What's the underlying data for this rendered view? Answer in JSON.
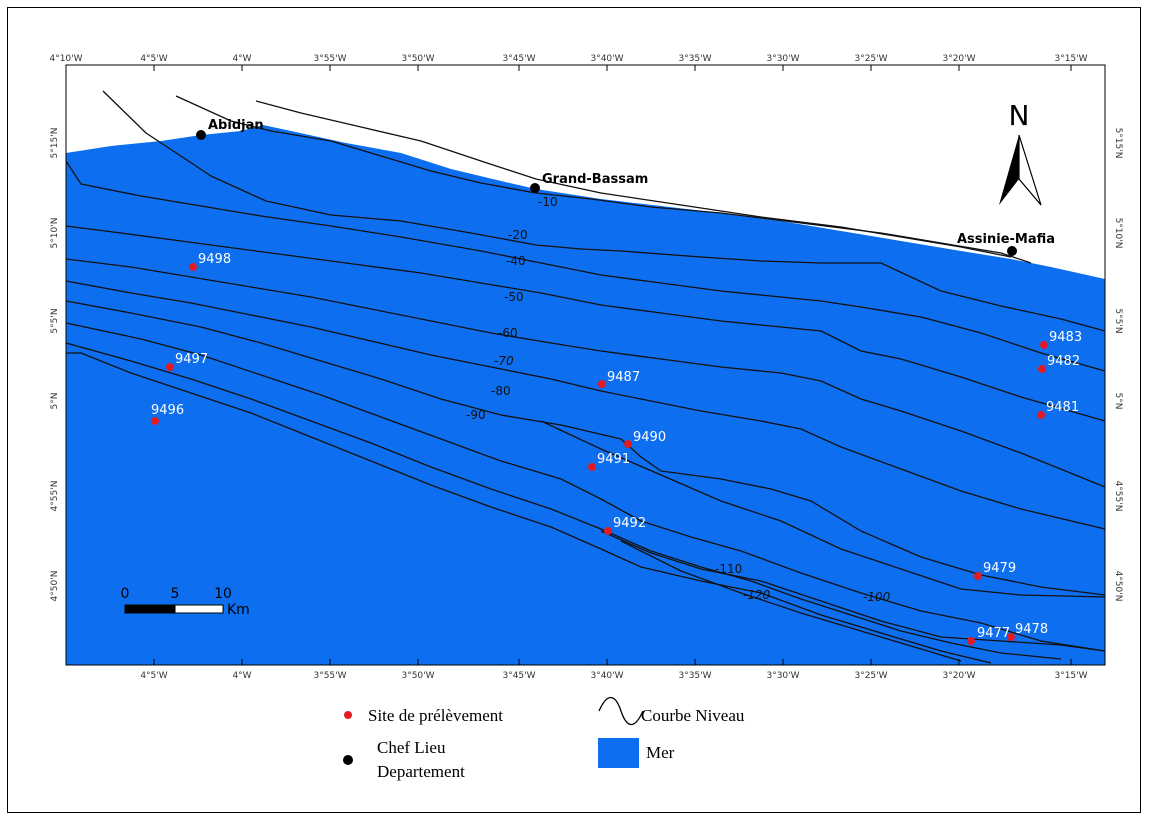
{
  "top_ticks": [
    "4°10'W",
    "4°5'W",
    "4°W",
    "3°55'W",
    "3°50'W",
    "3°45'W",
    "3°40'W",
    "3°35'W",
    "3°30'W",
    "3°25'W",
    "3°20'W",
    "3°15'W"
  ],
  "bottom_ticks": [
    "4°5'W",
    "4°W",
    "3°55'W",
    "3°50'W",
    "3°45'W",
    "3°40'W",
    "3°35'W",
    "3°30'W",
    "3°25'W",
    "3°20'W",
    "3°15'W"
  ],
  "lat_ticks": [
    "5°15'N",
    "5°10'N",
    "5°5'N",
    "5°N",
    "4°55'N",
    "4°50'N"
  ],
  "cities": [
    {
      "name": "Abidjan"
    },
    {
      "name": "Grand-Bassam"
    },
    {
      "name": "Assinie-Mafia"
    }
  ],
  "sites": [
    "9498",
    "9497",
    "9496",
    "9487",
    "9490",
    "9491",
    "9492",
    "9483",
    "9482",
    "9481",
    "9479",
    "9477",
    "9478"
  ],
  "contour_labels": [
    "-10",
    "-20",
    "-40",
    "-50",
    "-60",
    "-70",
    "-80",
    "-90",
    "-110",
    "-120",
    "-100"
  ],
  "north_label": "N",
  "scale": {
    "labels": [
      "0",
      "5",
      "10"
    ],
    "unit": "Km"
  },
  "legend": {
    "sample_site": "Site de prélèvement",
    "contour": "Courbe Niveau",
    "chief_town_line1": "Chef Lieu",
    "chief_town_line2": "Departement",
    "sea": "Mer"
  },
  "colors": {
    "sea": "#0d6ff0",
    "site": "#e01b24",
    "city": "#000000",
    "contour": "#111111"
  }
}
